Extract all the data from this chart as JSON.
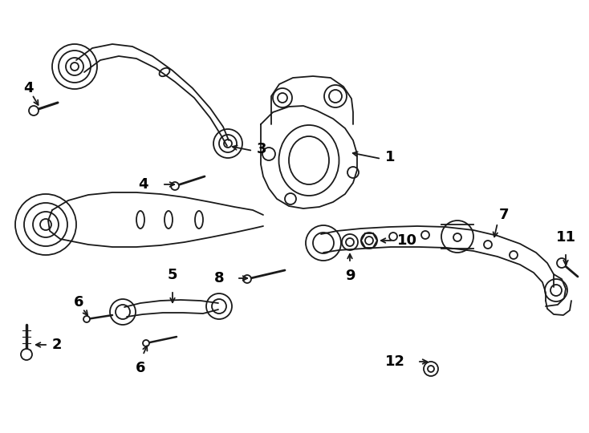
{
  "background_color": "#ffffff",
  "line_color": "#1a1a1a",
  "line_width": 1.3,
  "font_size": 13
}
